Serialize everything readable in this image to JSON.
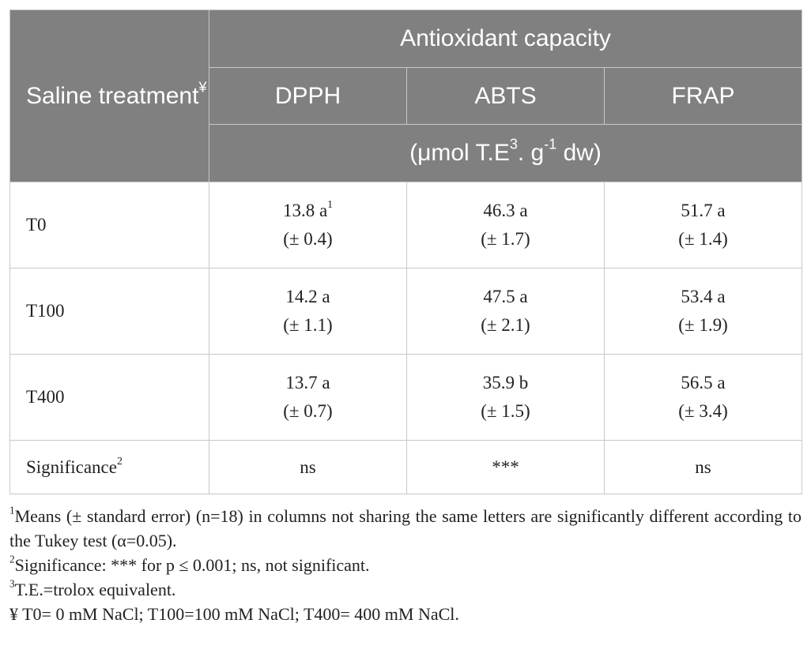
{
  "table": {
    "row_header": {
      "text": "Saline treatment",
      "mark": "¥"
    },
    "group_header": "Antioxidant capacity",
    "columns": [
      "DPPH",
      "ABTS",
      "FRAP"
    ],
    "unit": [
      "(μmol T.E",
      "3",
      ". g",
      "-1",
      " dw)"
    ],
    "rows": [
      {
        "label": "T0",
        "cells": [
          {
            "mean": "13.8 a",
            "note": "1",
            "se": "(± 0.4)"
          },
          {
            "mean": "46.3 a",
            "se": "(± 1.7)"
          },
          {
            "mean": "51.7 a",
            "se": "(± 1.4)"
          }
        ]
      },
      {
        "label": "T100",
        "cells": [
          {
            "mean": "14.2 a",
            "se": "(± 1.1)"
          },
          {
            "mean": "47.5 a",
            "se": "(± 2.1)"
          },
          {
            "mean": "53.4 a",
            "se": "(± 1.9)"
          }
        ]
      },
      {
        "label": "T400",
        "cells": [
          {
            "mean": "13.7 a",
            "se": "(± 0.7)"
          },
          {
            "mean": "35.9 b",
            "se": "(± 1.5)"
          },
          {
            "mean": "56.5 a",
            "se": "(± 3.4)"
          }
        ]
      }
    ],
    "significance": {
      "label": "Significance",
      "mark": "2",
      "values": [
        "ns",
        "***",
        "ns"
      ]
    }
  },
  "footnotes": [
    {
      "mark": "1",
      "text": "Means (± standard error) (n=18) in columns not sharing the same letters are significantly different according to the Tukey test (α=0.05)."
    },
    {
      "mark": "2",
      "text": "Significance: *** for p ≤ 0.001; ns, not significant."
    },
    {
      "mark": "3",
      "text": "T.E.=trolox equivalent."
    },
    {
      "text": "¥ T0= 0 mM NaCl; T100=100 mM NaCl; T400= 400 mM NaCl."
    }
  ]
}
